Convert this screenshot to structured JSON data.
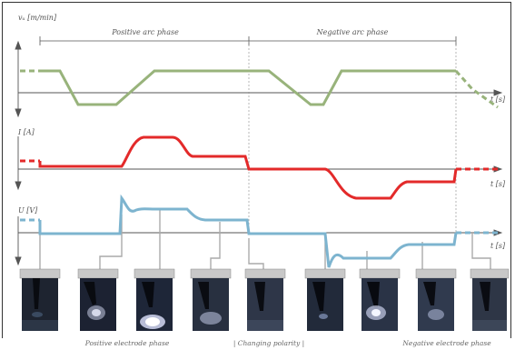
{
  "axes": {
    "speed_label": "vᵤ [m/min]",
    "current_label": "I [A]",
    "voltage_label": "U [V]",
    "time_label": "t [s]"
  },
  "phases": {
    "positive_arc": "Positive arc phase",
    "negative_arc": "Negative arc phase"
  },
  "bottom": {
    "positive_electrode": "Positive electrode phase",
    "changing_polarity": "| Changing polarity |",
    "negative_electrode": "Negative electrode phase"
  },
  "colors": {
    "speed": "#98b37b",
    "current": "#e32a2a",
    "voltage": "#7db4cf",
    "axis": "#555555",
    "connector": "#aaaaaa"
  },
  "photo_count": 9
}
